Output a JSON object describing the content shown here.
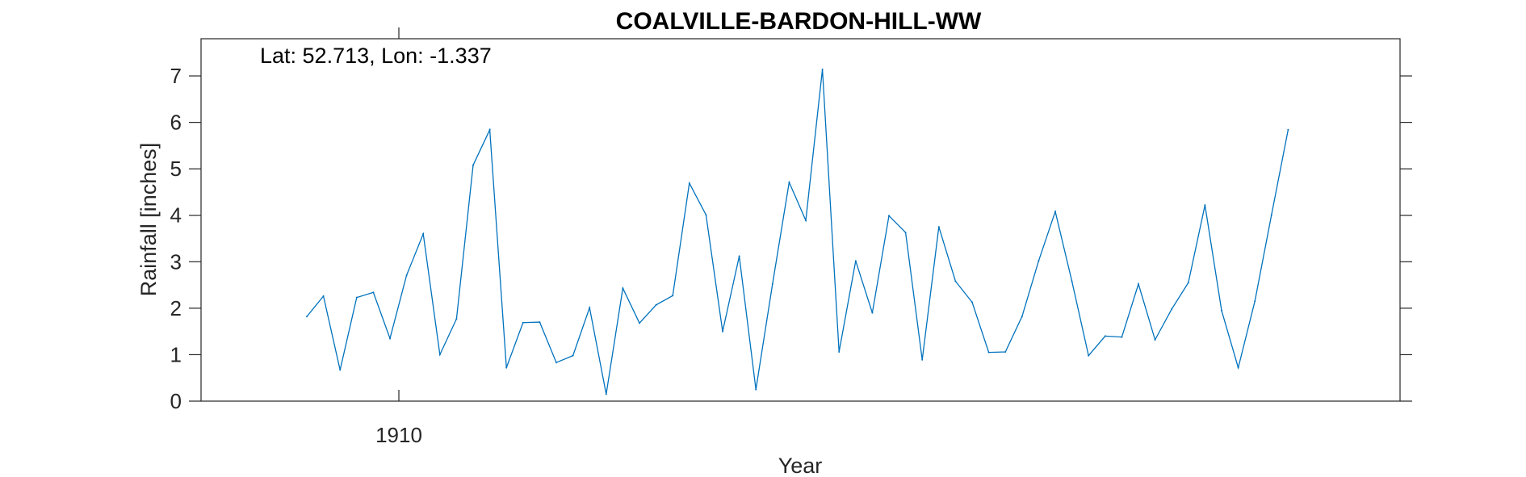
{
  "chart_data": {
    "type": "line",
    "title": "COALVILLE-BARDON-HILL-WW",
    "xlabel": "Year",
    "ylabel": "Rainfall [inches]",
    "annotation": "Lat: 52.713, Lon: -1.337",
    "x_tick_labels": [
      "1910"
    ],
    "y_ticks": [
      0,
      1,
      2,
      3,
      4,
      5,
      6,
      7
    ],
    "ylim": [
      0,
      7.8
    ],
    "grid": false,
    "series": [
      {
        "color": "#0072BD",
        "values": [
          1.82,
          2.26,
          0.67,
          2.23,
          2.34,
          1.35,
          2.71,
          3.6,
          1.0,
          1.77,
          5.08,
          5.84,
          0.72,
          1.69,
          1.7,
          0.83,
          0.98,
          2.01,
          0.15,
          2.43,
          1.68,
          2.07,
          2.27,
          4.69,
          4.01,
          1.5,
          3.12,
          0.25,
          2.52,
          4.71,
          3.89,
          7.14,
          1.06,
          3.02,
          1.9,
          3.99,
          3.63,
          0.89,
          3.75,
          2.58,
          2.13,
          1.05,
          1.06,
          1.82,
          3.02,
          4.08,
          2.58,
          0.98,
          1.4,
          1.38,
          2.52,
          1.32,
          1.98,
          2.55,
          4.22,
          1.95,
          0.72,
          2.15,
          4.01,
          5.84
        ]
      }
    ]
  }
}
